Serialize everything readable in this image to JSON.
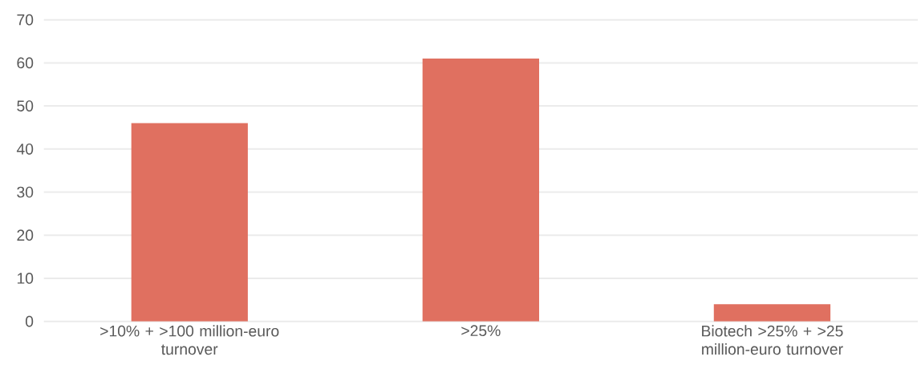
{
  "chart_data": {
    "type": "bar",
    "categories": [
      ">10% + >100 million-euro turnover",
      ">25%",
      "Biotech >25% + >25 million-euro turnover"
    ],
    "values": [
      46,
      61,
      4
    ],
    "color": "#e07060",
    "ylim": [
      0,
      70
    ],
    "yticks": [
      0,
      10,
      20,
      30,
      40,
      50,
      60,
      70
    ],
    "grid": "y"
  }
}
